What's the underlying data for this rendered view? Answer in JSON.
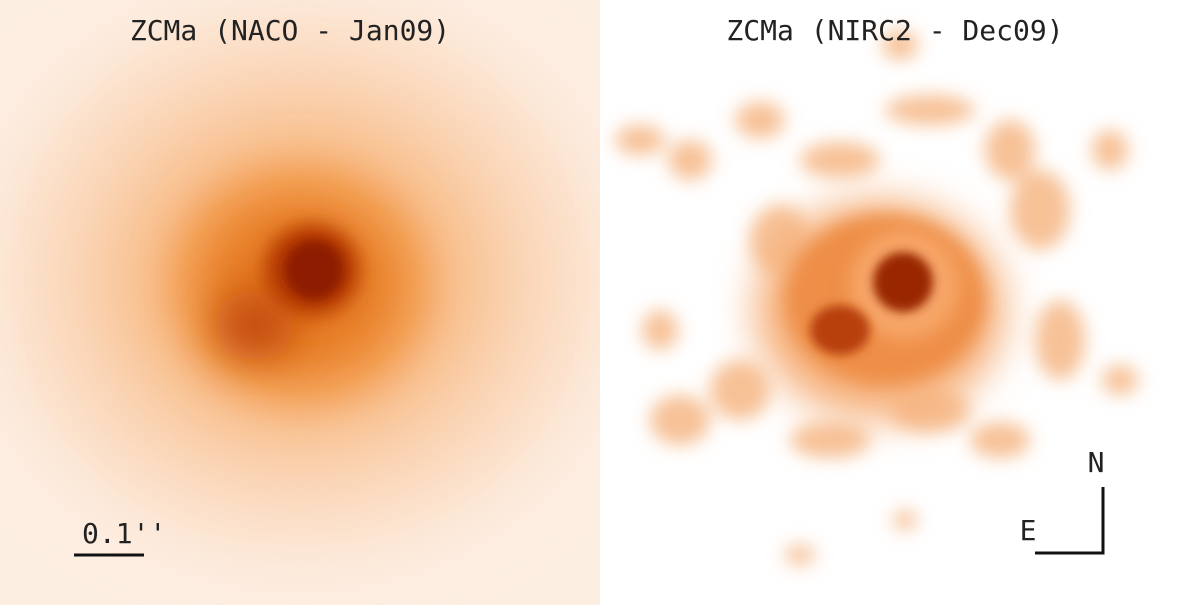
{
  "panels": [
    {
      "title": "ZCMa (NACO - Jan09)",
      "scale_label": "0.1''"
    },
    {
      "title": "ZCMa (NIRC2 - Dec09)",
      "compass": {
        "north": "N",
        "east": "E"
      }
    }
  ]
}
